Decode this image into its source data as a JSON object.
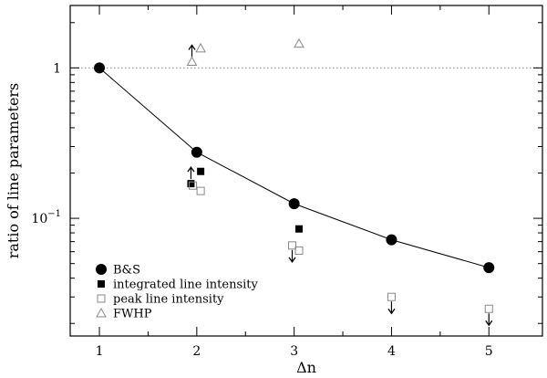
{
  "chart_data": {
    "type": "scatter",
    "xlabel": "Δn",
    "ylabel": "ratio of line parameters",
    "xlim": [
      0.7,
      5.55
    ],
    "ylim": [
      0.0165,
      2.6
    ],
    "y_scale": "log",
    "x_ticks": [
      1,
      2,
      3,
      4,
      5
    ],
    "x_tick_labels": [
      "1",
      "2",
      "3",
      "4",
      "5"
    ],
    "y_tick_labels": [
      {
        "value": 1,
        "base": "1",
        "exp": ""
      },
      {
        "value": 0.1,
        "base": "10",
        "exp": "−1"
      }
    ],
    "reference_line": {
      "y": 1,
      "style": "dotted"
    },
    "legend_position": "bottom-left",
    "series": [
      {
        "name": "B&S",
        "marker": "filled-circle",
        "connected": true,
        "points": [
          {
            "x": 1,
            "y": 1.0
          },
          {
            "x": 2,
            "y": 0.275
          },
          {
            "x": 3,
            "y": 0.125
          },
          {
            "x": 4,
            "y": 0.072
          },
          {
            "x": 5,
            "y": 0.047
          }
        ]
      },
      {
        "name": "integrated line intensity",
        "marker": "filled-square",
        "points": [
          {
            "x": 1.94,
            "y": 0.17,
            "limit": "lower"
          },
          {
            "x": 2.04,
            "y": 0.205
          },
          {
            "x": 3.05,
            "y": 0.085
          }
        ]
      },
      {
        "name": "peak line intensity",
        "marker": "open-square",
        "points": [
          {
            "x": 1.96,
            "y": 0.165
          },
          {
            "x": 2.04,
            "y": 0.152
          },
          {
            "x": 2.98,
            "y": 0.066,
            "limit": "upper"
          },
          {
            "x": 3.05,
            "y": 0.061
          },
          {
            "x": 4.0,
            "y": 0.03,
            "limit": "upper"
          },
          {
            "x": 5.0,
            "y": 0.025,
            "limit": "upper"
          }
        ]
      },
      {
        "name": "FWHP",
        "marker": "open-triangle",
        "points": [
          {
            "x": 1.95,
            "y": 1.1,
            "limit": "lower"
          },
          {
            "x": 2.04,
            "y": 1.35
          },
          {
            "x": 3.05,
            "y": 1.45
          }
        ]
      }
    ]
  }
}
